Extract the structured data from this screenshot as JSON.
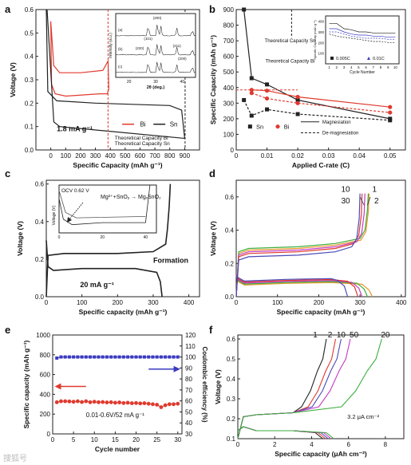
{
  "watermark": "搜狐号",
  "chart_data": [
    {
      "panel": "a",
      "type": "line",
      "xlabel": "Specific Capacity (mAh g⁻¹)",
      "ylabel": "Voltage (V)",
      "xlim": [
        -100,
        1000
      ],
      "ylim": [
        0.0,
        0.6
      ],
      "xticks": [
        0,
        100,
        200,
        300,
        400,
        500,
        600,
        700,
        800,
        900
      ],
      "yticks": [
        0.0,
        0.1,
        0.2,
        0.3,
        0.4,
        0.5,
        0.6
      ],
      "current_label": "1.8 mA g⁻¹",
      "legend": [
        "Bi",
        "Sn"
      ],
      "annotations": [
        "Theoretical Capacity Bi",
        "Theoretical Capacity Sn"
      ],
      "series": [
        {
          "name": "Bi",
          "color": "#e03a2e",
          "x": [
            0,
            20,
            60,
            200,
            350,
            385,
            390,
            380,
            330,
            100,
            30,
            5,
            0
          ],
          "y": [
            0.55,
            0.36,
            0.33,
            0.33,
            0.34,
            0.38,
            0.26,
            0.24,
            0.24,
            0.23,
            0.24,
            0.28,
            0.55
          ]
        },
        {
          "name": "Sn",
          "color": "#222222",
          "x": [
            -30,
            -20,
            40,
            300,
            800,
            880,
            900,
            890,
            60,
            20,
            -25
          ],
          "y": [
            0.6,
            0.25,
            0.21,
            0.2,
            0.19,
            0.17,
            0.05,
            0.05,
            0.1,
            0.12,
            0.6
          ]
        }
      ],
      "inset": {
        "xlabel": "2θ (deg.)",
        "ylabel": "Intensity (a.u.)",
        "xticks": [
          20,
          30,
          40
        ],
        "labels": [
          "(a)",
          "(b)",
          "(c)",
          "(200)",
          "(101)",
          "(220)",
          "(211)",
          "(200)"
        ]
      }
    },
    {
      "panel": "b",
      "type": "line",
      "xlabel": "Applied C-rate (C)",
      "ylabel": "Specific Capacity (mAh g⁻¹)",
      "xlim": [
        0,
        0.055
      ],
      "ylim": [
        0,
        900
      ],
      "xticks": [
        0.0,
        0.01,
        0.02,
        0.03,
        0.04,
        0.05
      ],
      "yticks": [
        0,
        100,
        200,
        300,
        400,
        500,
        600,
        700,
        800,
        900
      ],
      "annotations": [
        "Theoretical Capacity Sn",
        "Theoretical Capacity Bi"
      ],
      "legend": [
        "Sn",
        "Bi",
        "Magnesiation",
        "De-magnesiation"
      ],
      "series": [
        {
          "name": "Sn",
          "style": "magnesiation",
          "color": "#222222",
          "x": [
            0.0025,
            0.005,
            0.01,
            0.02,
            0.05
          ],
          "y": [
            900,
            460,
            420,
            320,
            200
          ]
        },
        {
          "name": "Sn",
          "style": "de-magnesiation",
          "color": "#222222",
          "x": [
            0.0025,
            0.005,
            0.01,
            0.02,
            0.05
          ],
          "y": [
            320,
            220,
            260,
            230,
            190
          ]
        },
        {
          "name": "Bi",
          "style": "magnesiation",
          "color": "#e03a2e",
          "x": [
            0.005,
            0.01,
            0.02,
            0.05
          ],
          "y": [
            385,
            380,
            340,
            275
          ]
        },
        {
          "name": "Bi",
          "style": "de-magnesiation",
          "color": "#e03a2e",
          "x": [
            0.005,
            0.01,
            0.02,
            0.05
          ],
          "y": [
            365,
            330,
            300,
            240
          ]
        }
      ],
      "inset": {
        "xlabel": "Cycle Number",
        "ylabel": "Specific Capacity (mAh g⁻¹)",
        "xticks": [
          1,
          2,
          3,
          4,
          5,
          6,
          7,
          8,
          9,
          10
        ],
        "yticks": [
          100,
          200,
          300,
          400
        ],
        "legend": [
          "0.005C",
          "0.01C"
        ]
      }
    },
    {
      "panel": "c",
      "type": "line",
      "xlabel": "Specific capacity (mAh g⁻¹)",
      "ylabel": "Voltage (V)",
      "xlim": [
        0,
        430
      ],
      "ylim": [
        0.0,
        0.62
      ],
      "xticks": [
        0,
        100,
        200,
        300,
        400
      ],
      "yticks": [
        0.0,
        0.2,
        0.4,
        0.6
      ],
      "labels": [
        "20 mA g⁻¹",
        "Formation"
      ],
      "series": [
        {
          "name": "charge",
          "color": "#222222",
          "x": [
            0,
            5,
            50,
            200,
            300,
            335,
            340,
            345,
            348
          ],
          "y": [
            0.0,
            0.22,
            0.23,
            0.23,
            0.24,
            0.28,
            0.36,
            0.48,
            0.6
          ]
        },
        {
          "name": "discharge",
          "color": "#222222",
          "x": [
            0,
            5,
            20,
            100,
            250,
            310,
            320,
            325
          ],
          "y": [
            0.3,
            0.16,
            0.14,
            0.15,
            0.15,
            0.13,
            0.08,
            0.0
          ]
        }
      ],
      "inset": {
        "text": [
          "OCV 0.62 V",
          "Mg²⁺+SnOᵧ → MgₓSnO₂"
        ],
        "ylabel": "Voltage (V)",
        "xticks": [
          0,
          20,
          40
        ]
      }
    },
    {
      "panel": "d",
      "type": "line",
      "xlabel": "Specific capacity (mAh g⁻¹)",
      "ylabel": "Voltage (V)",
      "xlim": [
        0,
        410
      ],
      "ylim": [
        0.0,
        0.7
      ],
      "xticks": [
        0,
        100,
        200,
        300,
        400
      ],
      "yticks": [
        0.0,
        0.2,
        0.4,
        0.6
      ],
      "cycle_labels": [
        "10",
        "1",
        "30",
        "2"
      ],
      "series": [
        {
          "name": "1",
          "color": "#e8962a",
          "charge_end": 322,
          "discharge_end": 330,
          "plateau": 0.31
        },
        {
          "name": "2",
          "color": "#3cae3c",
          "charge_end": 320,
          "discharge_end": 318,
          "plateau": 0.32
        },
        {
          "name": "10",
          "color": "#c43ac4",
          "charge_end": 312,
          "discharge_end": 305,
          "plateau": 0.3
        },
        {
          "name": "30",
          "color": "#e03a2e",
          "charge_end": 305,
          "discharge_end": 295,
          "plateau": 0.29
        },
        {
          "name": "30b",
          "color": "#4a4ab8",
          "charge_end": 300,
          "discharge_end": 270,
          "plateau": 0.27
        }
      ]
    },
    {
      "panel": "e",
      "type": "scatter",
      "xlabel": "Cycle number",
      "ylabel": "Specific capacity (mAh g⁻¹)",
      "y2label": "Coulombic efficiency (%)",
      "xlim": [
        0,
        31
      ],
      "ylim": [
        0,
        1000
      ],
      "y2lim": [
        30,
        120
      ],
      "xticks": [
        0,
        5,
        10,
        15,
        20,
        25,
        30
      ],
      "yticks": [
        0,
        200,
        400,
        600,
        800,
        1000
      ],
      "y2ticks": [
        30,
        40,
        50,
        60,
        70,
        80,
        90,
        100,
        110,
        120
      ],
      "label": "0.01-0.6V/52 mA g⁻¹",
      "series": [
        {
          "name": "capacity",
          "color": "#e03a2e",
          "x": [
            1,
            2,
            3,
            4,
            5,
            6,
            7,
            8,
            9,
            10,
            11,
            12,
            13,
            14,
            15,
            16,
            17,
            18,
            19,
            20,
            21,
            22,
            23,
            24,
            25,
            26,
            27,
            28,
            29,
            30
          ],
          "y": [
            320,
            330,
            330,
            328,
            325,
            330,
            322,
            330,
            320,
            325,
            320,
            322,
            318,
            320,
            315,
            318,
            312,
            315,
            310,
            312,
            308,
            310,
            305,
            300,
            295,
            270,
            290,
            300,
            300,
            305
          ]
        },
        {
          "name": "coulombic efficiency",
          "color": "#3a3ac0",
          "axis": "y2",
          "x": [
            1,
            2,
            3,
            4,
            5,
            6,
            7,
            8,
            9,
            10,
            11,
            12,
            13,
            14,
            15,
            16,
            17,
            18,
            19,
            20,
            21,
            22,
            23,
            24,
            25,
            26,
            27,
            28,
            29,
            30
          ],
          "y": [
            99,
            100,
            100,
            100,
            100,
            100,
            100,
            100,
            100,
            100,
            100,
            100,
            100,
            100,
            100,
            100,
            100,
            100,
            100,
            100,
            100,
            100,
            100,
            100,
            100,
            100,
            100,
            100,
            100,
            100
          ]
        }
      ]
    },
    {
      "panel": "f",
      "type": "line",
      "xlabel": "Specific capacity (μAh cm⁻²)",
      "ylabel": "Voltage (V)",
      "xlim": [
        0,
        9
      ],
      "ylim": [
        0.1,
        0.62
      ],
      "xticks": [
        0,
        2,
        4,
        6,
        8
      ],
      "yticks": [
        0.1,
        0.2,
        0.3,
        0.4,
        0.5,
        0.6
      ],
      "label": "3.2 μA cm⁻²",
      "cycle_labels": [
        "1",
        "2",
        "10",
        "50",
        "20"
      ],
      "series": [
        {
          "name": "1",
          "color": "#222222",
          "charge_end": 4.8
        },
        {
          "name": "2",
          "color": "#e03a2e",
          "charge_end": 5.3
        },
        {
          "name": "10",
          "color": "#4a4ab8",
          "charge_end": 5.6
        },
        {
          "name": "50",
          "color": "#c43ac4",
          "charge_end": 6.1
        },
        {
          "name": "20",
          "color": "#3cae3c",
          "charge_end": 7.8
        }
      ]
    }
  ]
}
